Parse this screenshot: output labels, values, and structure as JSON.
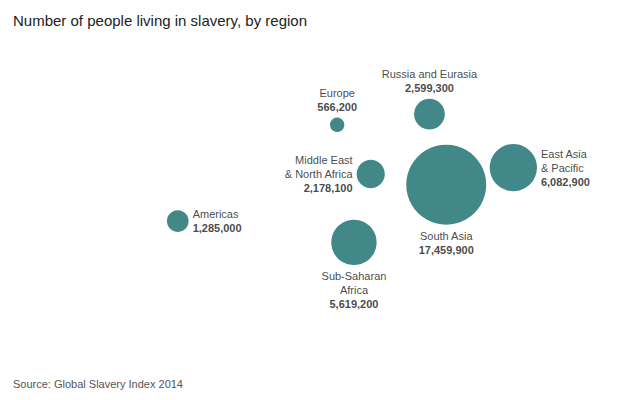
{
  "chart_data": {
    "type": "scatter",
    "title": "Number of people living in slavery, by region",
    "annotations": [
      "Source: Global Slavery Index 2014"
    ],
    "point_labels": [
      "Americas",
      "Europe",
      "Middle East\n& North Africa",
      "Russia and Eurasia",
      "Sub-Saharan\nAfrica",
      "South Asia",
      "East Asia\n& Pacific"
    ],
    "x": [
      -80,
      15,
      35,
      70,
      25,
      80,
      120
    ],
    "values": [
      5,
      50,
      27,
      55,
      -5,
      22,
      30
    ],
    "sizes": [
      1285000,
      566200,
      2178100,
      2599300,
      5619200,
      17459900,
      6082900
    ],
    "size_labels": [
      "1,285,000",
      "566,200",
      "2,178,100",
      "2,599,300",
      "5,619,200",
      "17,459,900",
      "6,082,900"
    ],
    "color": "#2d7b7b",
    "xlim": [
      -180,
      180
    ],
    "ylim": [
      -60,
      85
    ],
    "tick_labels": false,
    "grid": false
  }
}
